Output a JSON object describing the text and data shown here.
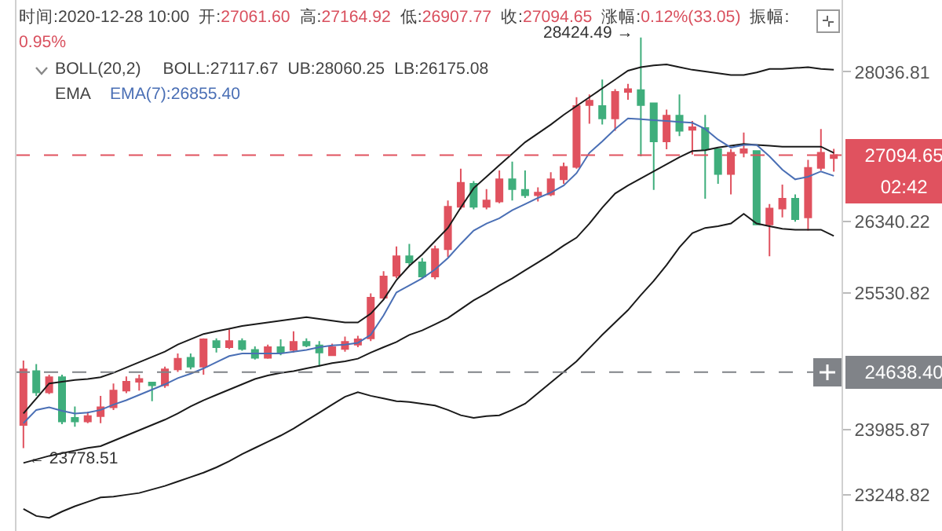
{
  "chart_data": {
    "type": "candlestick",
    "categories": [
      null,
      null,
      null,
      null,
      null,
      null,
      null,
      null,
      null,
      null,
      null,
      null,
      null,
      null,
      null,
      null,
      null,
      null,
      null,
      null,
      null,
      null,
      null,
      null,
      null,
      null,
      null,
      null,
      null,
      null,
      null,
      null,
      null,
      null,
      null,
      null,
      null,
      null,
      null,
      null,
      null,
      null,
      null,
      null,
      null,
      null,
      null,
      null,
      null,
      null,
      null,
      null,
      null,
      null,
      null,
      null,
      null,
      null,
      null,
      null,
      null,
      null,
      null,
      null
    ],
    "ohlc": [
      [
        24040,
        24770,
        23778.51,
        24670
      ],
      [
        24650,
        24730,
        24370,
        24410
      ],
      [
        24410,
        24610,
        24390,
        24580
      ],
      [
        24580,
        24610,
        24050,
        24080
      ],
      [
        24120,
        24250,
        24020,
        24080
      ],
      [
        24080,
        24190,
        24060,
        24140
      ],
      [
        24140,
        24370,
        24060,
        24240
      ],
      [
        24240,
        24510,
        24210,
        24430
      ],
      [
        24430,
        24590,
        24400,
        24530
      ],
      [
        24530,
        24610,
        24430,
        24560
      ],
      [
        24520,
        24530,
        24310,
        24490
      ],
      [
        24490,
        24700,
        24460,
        24670
      ],
      [
        24670,
        24850,
        24640,
        24790
      ],
      [
        24800,
        24850,
        24670,
        24700
      ],
      [
        24700,
        25020,
        24610,
        25010
      ],
      [
        24990,
        25020,
        24860,
        24920
      ],
      [
        24920,
        25120,
        24900,
        24990
      ],
      [
        24990,
        25020,
        24880,
        24900
      ],
      [
        24890,
        24930,
        24780,
        24800
      ],
      [
        24800,
        24950,
        24790,
        24920
      ],
      [
        24920,
        25010,
        24830,
        24860
      ],
      [
        24890,
        25100,
        24860,
        24980
      ],
      [
        24980,
        25020,
        24920,
        24940
      ],
      [
        24940,
        24990,
        24700,
        24860
      ],
      [
        24830,
        24960,
        24820,
        24920
      ],
      [
        24900,
        25040,
        24870,
        24980
      ],
      [
        24950,
        25050,
        24920,
        25010
      ],
      [
        25020,
        25530,
        24990,
        25480
      ],
      [
        25480,
        25780,
        25460,
        25720
      ],
      [
        25730,
        26060,
        25700,
        25950
      ],
      [
        25950,
        26090,
        25840,
        25880
      ],
      [
        25880,
        25930,
        25700,
        25720
      ],
      [
        25720,
        26070,
        25690,
        26030
      ],
      [
        26030,
        26580,
        25940,
        26510
      ],
      [
        26510,
        26940,
        26480,
        26780
      ],
      [
        26770,
        26800,
        26480,
        26510
      ],
      [
        26510,
        26710,
        26480,
        26580
      ],
      [
        26570,
        26920,
        26550,
        26820
      ],
      [
        26820,
        27020,
        26580,
        26710
      ],
      [
        26700,
        26920,
        26610,
        26640
      ],
      [
        26640,
        26730,
        26570,
        26670
      ],
      [
        26650,
        26900,
        26630,
        26820
      ],
      [
        26820,
        27010,
        26770,
        26960
      ],
      [
        26960,
        27750,
        26940,
        27650
      ],
      [
        27660,
        27780,
        27450,
        27710
      ],
      [
        27650,
        27950,
        27440,
        27510
      ],
      [
        27510,
        27840,
        27370,
        27810
      ],
      [
        27810,
        27900,
        27720,
        27840
      ],
      [
        27830,
        28424.49,
        27080,
        27660
      ],
      [
        27680,
        27680,
        26700,
        27250
      ],
      [
        27250,
        27610,
        27160,
        27540
      ],
      [
        27540,
        27780,
        27310,
        27370
      ],
      [
        27380,
        27480,
        27100,
        27410
      ],
      [
        27400,
        27550,
        26600,
        27160
      ],
      [
        27160,
        27160,
        26770,
        26880
      ],
      [
        26880,
        27160,
        26650,
        27120
      ],
      [
        27120,
        27350,
        27070,
        27160
      ],
      [
        27140,
        27140,
        26300,
        26310
      ],
      [
        26310,
        26540,
        25950,
        26490
      ],
      [
        26490,
        26760,
        26390,
        26600
      ],
      [
        26600,
        26650,
        26340,
        26370
      ],
      [
        26390,
        27040,
        26240,
        26950
      ],
      [
        26950,
        27390,
        26920,
        27120
      ],
      [
        27061.6,
        27164.92,
        26907.77,
        27094.65
      ]
    ],
    "colors": [
      "#e0525f",
      "#3fae7c",
      "#e0525f",
      "#3fae7c",
      "#3fae7c",
      "#e0525f",
      "#e0525f",
      "#e0525f",
      "#e0525f",
      "#e0525f",
      "#3fae7c",
      "#e0525f",
      "#e0525f",
      "#3fae7c",
      "#e0525f",
      "#3fae7c",
      "#e0525f",
      "#3fae7c",
      "#3fae7c",
      "#e0525f",
      "#3fae7c",
      "#e0525f",
      "#3fae7c",
      "#3fae7c",
      "#e0525f",
      "#e0525f",
      "#e0525f",
      "#e0525f",
      "#e0525f",
      "#e0525f",
      "#3fae7c",
      "#3fae7c",
      "#e0525f",
      "#e0525f",
      "#e0525f",
      "#3fae7c",
      "#e0525f",
      "#e0525f",
      "#3fae7c",
      "#3fae7c",
      "#e0525f",
      "#e0525f",
      "#e0525f",
      "#e0525f",
      "#e0525f",
      "#3fae7c",
      "#e0525f",
      "#e0525f",
      "#3fae7c",
      "#3fae7c",
      "#e0525f",
      "#3fae7c",
      "#e0525f",
      "#3fae7c",
      "#3fae7c",
      "#e0525f",
      "#e0525f",
      "#3fae7c",
      "#e0525f",
      "#e0525f",
      "#3fae7c",
      "#e0525f",
      "#e0525f",
      "#e0525f"
    ],
    "series": [
      {
        "type": "line",
        "color": "#1a1a1a",
        "values": [
          24170,
          24340,
          24510,
          24530,
          24550,
          24560,
          24580,
          24630,
          24690,
          24750,
          24810,
          24870,
          24950,
          25010,
          25070,
          25100,
          25130,
          25160,
          25180,
          25200,
          25220,
          25240,
          25260,
          25240,
          25220,
          25200,
          25200,
          25300,
          25460,
          25680,
          25840,
          25970,
          26120,
          26270,
          26500,
          26720,
          26850,
          26980,
          27110,
          27240,
          27340,
          27440,
          27550,
          27650,
          27750,
          27850,
          27950,
          28050,
          28090,
          28110,
          28120,
          28090,
          28060,
          28040,
          28020,
          28000,
          28000,
          28030,
          28070,
          28070,
          28080,
          28090,
          28070,
          28060
        ]
      },
      {
        "type": "line",
        "color": "#1a1a1a",
        "values": [
          23610,
          23650,
          23690,
          23720,
          23750,
          23780,
          23800,
          23860,
          23920,
          23980,
          24040,
          24100,
          24170,
          24250,
          24320,
          24380,
          24440,
          24500,
          24560,
          24600,
          24630,
          24650,
          24680,
          24710,
          24740,
          24760,
          24790,
          24860,
          24920,
          24980,
          25060,
          25110,
          25180,
          25250,
          25350,
          25450,
          25530,
          25620,
          25700,
          25790,
          25880,
          25970,
          26070,
          26160,
          26320,
          26500,
          26660,
          26750,
          26830,
          26910,
          26990,
          27070,
          27140,
          27150,
          27180,
          27200,
          27220,
          27210,
          27200,
          27190,
          27190,
          27190,
          27190,
          27120
        ]
      },
      {
        "type": "line",
        "color": "#1a1a1a",
        "values": [
          23090,
          23010,
          22990,
          23060,
          23120,
          23170,
          23220,
          23230,
          23250,
          23270,
          23310,
          23350,
          23400,
          23450,
          23500,
          23560,
          23630,
          23710,
          23780,
          23850,
          23920,
          24000,
          24090,
          24180,
          24270,
          24360,
          24410,
          24370,
          24340,
          24310,
          24300,
          24280,
          24260,
          24210,
          24150,
          24120,
          24140,
          24150,
          24210,
          24280,
          24400,
          24520,
          24640,
          24760,
          24910,
          25060,
          25200,
          25340,
          25510,
          25670,
          25850,
          26050,
          26210,
          26270,
          26290,
          26320,
          26430,
          26320,
          26290,
          26260,
          26250,
          26250,
          26250,
          26180
        ]
      },
      {
        "type": "line",
        "color": "#4a6fb5",
        "values": [
          24060,
          24210,
          24240,
          24200,
          24170,
          24180,
          24210,
          24270,
          24320,
          24380,
          24440,
          24500,
          24570,
          24620,
          24680,
          24750,
          24820,
          24850,
          24850,
          24850,
          24850,
          24870,
          24890,
          24920,
          24940,
          24950,
          24970,
          25060,
          25280,
          25540,
          25620,
          25700,
          25800,
          25930,
          26090,
          26240,
          26320,
          26380,
          26470,
          26540,
          26610,
          26670,
          26750,
          26890,
          27120,
          27250,
          27390,
          27510,
          27500,
          27490,
          27480,
          27470,
          27460,
          27390,
          27270,
          27180,
          27210,
          27210,
          27080,
          26930,
          26820,
          26850,
          26910,
          26860
        ]
      }
    ],
    "ylim": [
      22840,
      28850
    ],
    "yticks": [
      23248.82,
      23985.87,
      25530.82,
      26340.22,
      28036.81
    ],
    "ref_lines": [
      {
        "axis": "y",
        "value": 27094.65,
        "label": "27094.65",
        "color": "#e0525f",
        "line_style": "dashed"
      },
      {
        "axis": "y",
        "value": 24638.4,
        "label": "24638.40",
        "color": "#808388",
        "line_style": "dashed"
      }
    ],
    "annotations": [
      "时间:2020-12-28 10:00",
      "开:27061.60",
      "高:27164.92",
      "低:26907.77",
      "收:27094.65",
      "涨幅:0.12%(33.05)",
      "振幅:0.95%",
      "BOLL(20,2)",
      "BOLL:27117.67",
      "UB:28060.25",
      "LB:26175.08",
      "EMA",
      "EMA(7):26855.40",
      "02:42",
      "28424.49 →",
      "← 23778.51"
    ],
    "grid": false,
    "marker": "none",
    "line_style": "solid"
  }
}
